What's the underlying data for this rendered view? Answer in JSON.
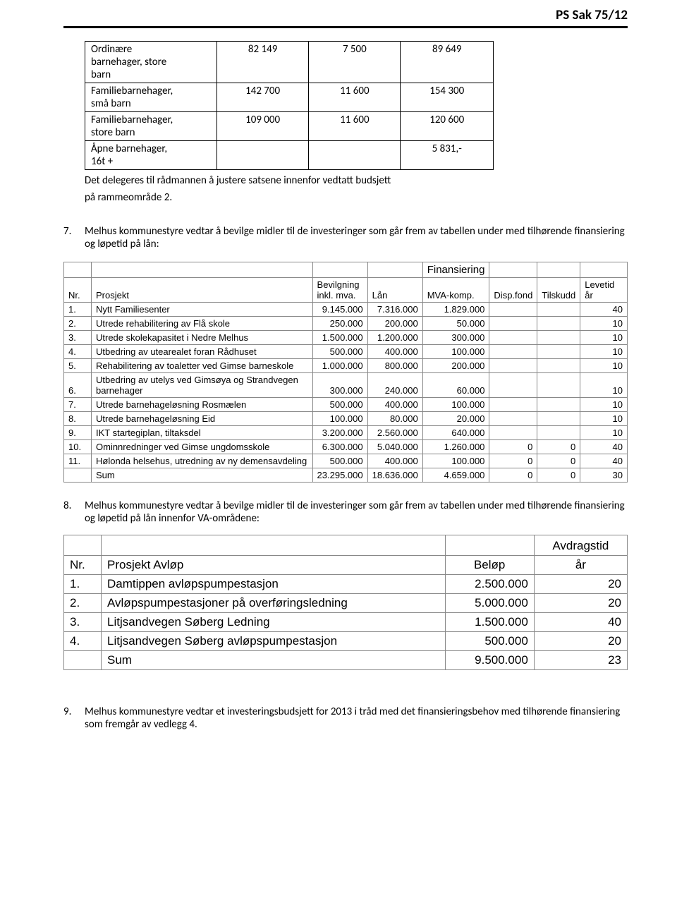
{
  "header": {
    "title": "PS Sak 75/12"
  },
  "rates_table": {
    "rows": [
      {
        "label_html": "Ordinære<br>barnehager, store<br>barn",
        "c1": "82 149",
        "c2": "7 500",
        "c3": "89 649"
      },
      {
        "label_html": "Familiebarnehager,<br>små barn",
        "c1": "142 700",
        "c2": "11 600",
        "c3": "154 300"
      },
      {
        "label_html": "Familiebarnehager,<br>store barn",
        "c1": "109 000",
        "c2": "11 600",
        "c3": "120 600"
      },
      {
        "label_html": "Åpne barnehager,<br>16t +",
        "c1": "",
        "c2": "",
        "c3": "5 831,-"
      }
    ]
  },
  "delegation_text": {
    "line1": "Det delegeres til rådmannen å justere satsene innenfor vedtatt budsjett",
    "line2": "på rammeområde 2."
  },
  "item7": {
    "num": "7.",
    "text": "Melhus kommunestyre vedtar å bevilge midler til de investeringer som går frem av tabellen under med tilhørende finansiering og løpetid på lån:"
  },
  "inv_table": {
    "fin_header": "Finansiering",
    "cols": {
      "nr": "Nr.",
      "prosjekt": "Prosjekt",
      "bevilgning_l1": "Bevilgning",
      "bevilgning_l2": "inkl. mva.",
      "lan": "Lån",
      "mva": "MVA-komp.",
      "dispfond": "Disp.fond",
      "tilskudd": "Tilskudd",
      "levetid": "Levetid år"
    },
    "rows": [
      {
        "nr": "1.",
        "p": "Nytt Familiesenter",
        "bev": "9.145.000",
        "lan": "7.316.000",
        "mva": "1.829.000",
        "df": "",
        "ts": "",
        "lv": "40"
      },
      {
        "nr": "2.",
        "p": "Utrede rehabilitering av Flå skole",
        "bev": "250.000",
        "lan": "200.000",
        "mva": "50.000",
        "df": "",
        "ts": "",
        "lv": "10"
      },
      {
        "nr": "3.",
        "p": "Utrede skolekapasitet i Nedre Melhus",
        "bev": "1.500.000",
        "lan": "1.200.000",
        "mva": "300.000",
        "df": "",
        "ts": "",
        "lv": "10"
      },
      {
        "nr": "4.",
        "p": "Utbedring av utearealet foran Rådhuset",
        "bev": "500.000",
        "lan": "400.000",
        "mva": "100.000",
        "df": "",
        "ts": "",
        "lv": "10"
      },
      {
        "nr": "5.",
        "p": "Rehabilitering av toaletter ved Gimse barneskole",
        "bev": "1.000.000",
        "lan": "800.000",
        "mva": "200.000",
        "df": "",
        "ts": "",
        "lv": "10"
      },
      {
        "nr": "6.",
        "p": "Utbedring av utelys ved Gimsøya og Strandvegen barnehager",
        "bev": "300.000",
        "lan": "240.000",
        "mva": "60.000",
        "df": "",
        "ts": "",
        "lv": "10"
      },
      {
        "nr": "7.",
        "p": "Utrede barnehageløsning Rosmælen",
        "bev": "500.000",
        "lan": "400.000",
        "mva": "100.000",
        "df": "",
        "ts": "",
        "lv": "10"
      },
      {
        "nr": "8.",
        "p": "Utrede barnehageløsning Eid",
        "bev": "100.000",
        "lan": "80.000",
        "mva": "20.000",
        "df": "",
        "ts": "",
        "lv": "10"
      },
      {
        "nr": "9.",
        "p": "IKT startegiplan, tiltaksdel",
        "bev": "3.200.000",
        "lan": "2.560.000",
        "mva": "640.000",
        "df": "",
        "ts": "",
        "lv": "10"
      },
      {
        "nr": "10.",
        "p": "Ominnredninger ved Gimse ungdomsskole",
        "bev": "6.300.000",
        "lan": "5.040.000",
        "mva": "1.260.000",
        "df": "0",
        "ts": "0",
        "lv": "40"
      },
      {
        "nr": "11.",
        "p": "Hølonda helsehus, utredning av ny demensavdeling",
        "bev": "500.000",
        "lan": "400.000",
        "mva": "100.000",
        "df": "0",
        "ts": "0",
        "lv": "40"
      }
    ],
    "sum": {
      "label": "Sum",
      "bev": "23.295.000",
      "lan": "18.636.000",
      "mva": "4.659.000",
      "df": "0",
      "ts": "0",
      "lv": "30"
    }
  },
  "item8": {
    "num": "8.",
    "text": "Melhus kommunestyre vedtar å bevilge midler til de investeringer som går frem av tabellen under med tilhørende finansiering og løpetid på lån innenfor VA-områdene:"
  },
  "va_table": {
    "cols": {
      "nr": "Nr.",
      "prosjekt": "Prosjekt Avløp",
      "belop": "Beløp",
      "avdrag_l1": "Avdragstid",
      "avdrag_l2": "år"
    },
    "rows": [
      {
        "nr": "1.",
        "p": "Damtippen avløpspumpestasjon",
        "b": "2.500.000",
        "a": "20"
      },
      {
        "nr": "2.",
        "p": "Avløpspumpestasjoner på overføringsledning",
        "b": "5.000.000",
        "a": "20"
      },
      {
        "nr": "3.",
        "p": "Litjsandvegen Søberg Ledning",
        "b": "1.500.000",
        "a": "40"
      },
      {
        "nr": "4.",
        "p": "Litjsandvegen Søberg avløpspumpestasjon",
        "b": "500.000",
        "a": "20"
      }
    ],
    "sum": {
      "label": "Sum",
      "b": "9.500.000",
      "a": "23"
    }
  },
  "item9": {
    "num": "9.",
    "text": "Melhus kommunestyre vedtar et investeringsbudsjett for 2013 i tråd med det finansieringsbehov med tilhørende finansiering som fremgår av vedlegg 4."
  }
}
